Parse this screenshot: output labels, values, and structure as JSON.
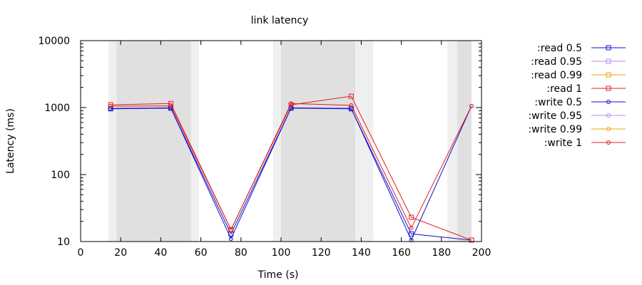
{
  "chart_data": {
    "type": "line",
    "title": "link latency",
    "xlabel": "Time (s)",
    "ylabel": "Latency (ms)",
    "xlim": [
      0,
      200
    ],
    "ylim": [
      10,
      10000
    ],
    "yscale": "log",
    "x_ticks": [
      0,
      20,
      40,
      60,
      80,
      100,
      120,
      140,
      160,
      180,
      200
    ],
    "y_ticks": [
      10,
      100,
      1000,
      10000
    ],
    "x_tick_labels": [
      "0",
      "20",
      "40",
      "60",
      "80",
      "100",
      "120",
      "140",
      "160",
      "180",
      "200"
    ],
    "y_tick_labels": [
      "10",
      "100",
      "1000",
      "10000"
    ],
    "grid": false,
    "legend_position": "outside-right",
    "shaded_bands": [
      {
        "from": 14,
        "to": 59,
        "color": "#efefef"
      },
      {
        "from": 18,
        "to": 55,
        "color": "#e0e0e0"
      },
      {
        "from": 96,
        "to": 146,
        "color": "#efefef"
      },
      {
        "from": 100,
        "to": 137,
        "color": "#e0e0e0"
      },
      {
        "from": 183,
        "to": 195,
        "color": "#efefef"
      },
      {
        "from": 188,
        "to": 195,
        "color": "#e0e0e0"
      }
    ],
    "series": [
      {
        "name": ":read 0.5",
        "color": "#1010d0",
        "marker": "square",
        "points": [
          [
            15,
            960
          ],
          [
            45,
            980
          ],
          [
            75,
            13
          ],
          [
            105,
            980
          ],
          [
            135,
            960
          ],
          [
            165,
            13
          ],
          [
            195,
            10.5
          ]
        ]
      },
      {
        "name": ":read 0.95",
        "color": "#b48cf0",
        "marker": "square",
        "points": []
      },
      {
        "name": ":read 0.99",
        "color": "#e8a800",
        "marker": "square",
        "points": []
      },
      {
        "name": ":read 1",
        "color": "#e02020",
        "marker": "square",
        "points": [
          [
            15,
            1100
          ],
          [
            45,
            1150
          ],
          [
            75,
            15
          ],
          [
            105,
            1100
          ],
          [
            135,
            1480
          ],
          [
            165,
            23
          ],
          [
            195,
            10.5
          ]
        ]
      },
      {
        "name": ":write 0.5",
        "color": "#1010d0",
        "marker": "circle",
        "points": [
          [
            15,
            970
          ],
          [
            45,
            990
          ],
          [
            75,
            11
          ],
          [
            105,
            990
          ],
          [
            135,
            970
          ],
          [
            165,
            10.5
          ],
          [
            195,
            1050
          ]
        ]
      },
      {
        "name": ":write 0.95",
        "color": "#b48cf0",
        "marker": "circle",
        "points": []
      },
      {
        "name": ":write 0.99",
        "color": "#e8a800",
        "marker": "circle",
        "points": []
      },
      {
        "name": ":write 1",
        "color": "#e02020",
        "marker": "circle",
        "points": [
          [
            15,
            1050
          ],
          [
            45,
            1060
          ],
          [
            75,
            15
          ],
          [
            105,
            1150
          ],
          [
            135,
            1080
          ],
          [
            165,
            16
          ],
          [
            195,
            1050
          ]
        ]
      }
    ]
  }
}
